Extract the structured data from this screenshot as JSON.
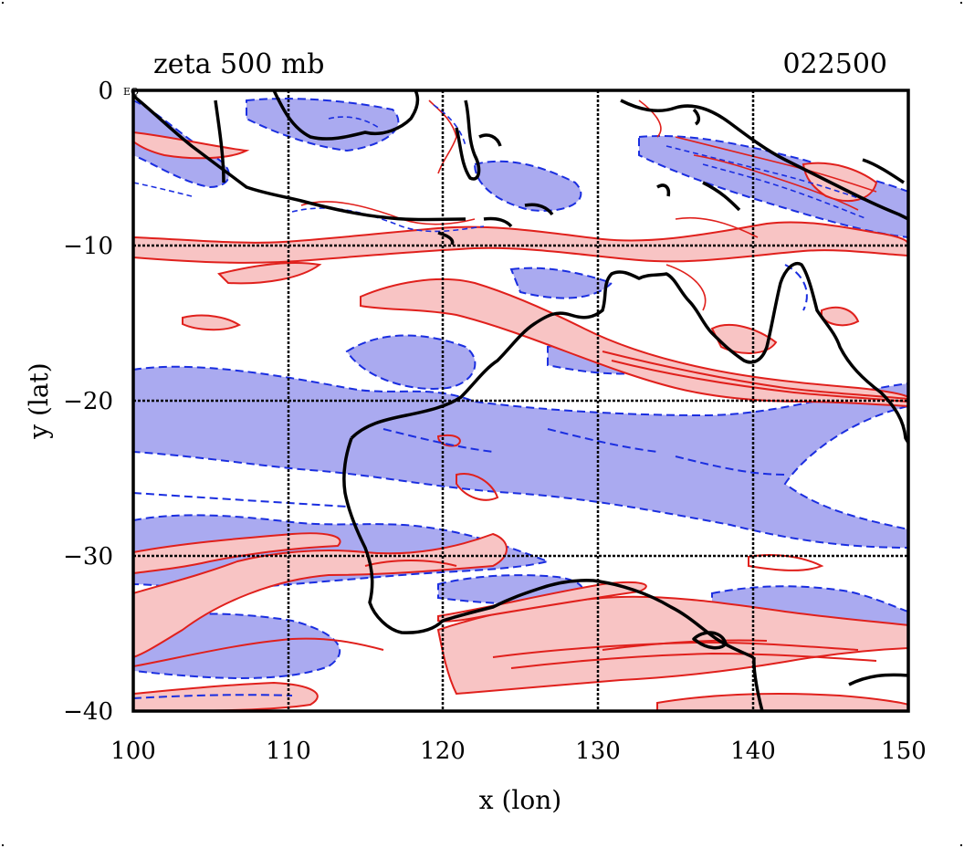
{
  "title_left": "zeta 500 mb",
  "title_right": "022500",
  "xlabel": "x (lon)",
  "ylabel": "y (lat)",
  "corner_mark": "EQ",
  "x_ticks": [
    "100",
    "110",
    "120",
    "130",
    "140",
    "150"
  ],
  "y_ticks": [
    "0",
    "−10",
    "−20",
    "−30",
    "−40"
  ],
  "colors": {
    "positive_line": "#e0201c",
    "positive_fill": "#f8c4c4",
    "negative_line": "#1a2ee0",
    "negative_fill": "#aaaaf0",
    "coast": "#000000",
    "grid": "#000000"
  },
  "map": {
    "lon_range": [
      100,
      150
    ],
    "lat_range": [
      -40,
      0
    ],
    "field": "500 mb relative vorticity",
    "positive_contours": "solid red, pink shaded",
    "negative_contours": "dashed blue, lavender shaded"
  }
}
